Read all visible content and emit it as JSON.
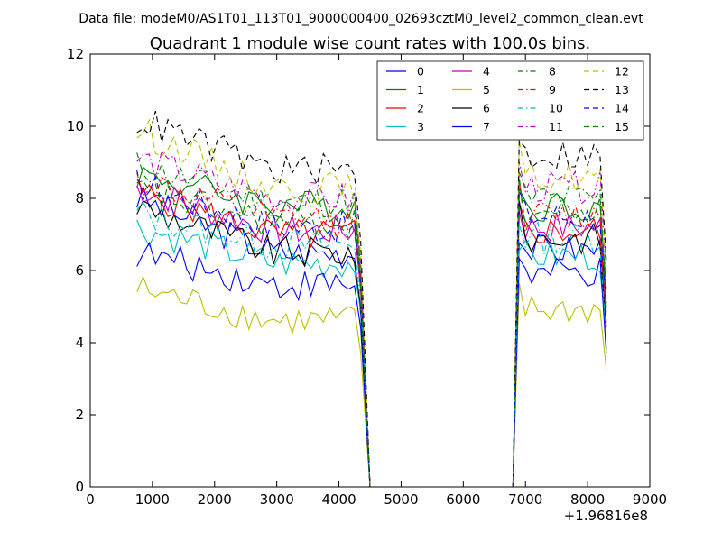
{
  "chart_data": {
    "type": "line",
    "suptitle": "Data file: modeM0/AS1T01_113T01_9000000400_02693cztM0_level2_common_clean.evt",
    "title": "Quadrant 1 module wise count rates with 100.0s bins.",
    "xlabel": "",
    "ylabel": "",
    "x_offset_label": "+1.96816e8",
    "xlim": [
      0,
      9000
    ],
    "ylim": [
      0,
      12
    ],
    "x_ticks": [
      0,
      1000,
      2000,
      3000,
      4000,
      5000,
      6000,
      7000,
      8000,
      9000
    ],
    "y_ticks": [
      0,
      2,
      4,
      6,
      8,
      10,
      12
    ],
    "grid": false,
    "legend_position": "top-right",
    "legend_columns": 4,
    "x": [
      750,
      850,
      950,
      1050,
      1150,
      1250,
      1350,
      1450,
      1550,
      1650,
      1750,
      1850,
      1950,
      2050,
      2150,
      2250,
      2350,
      2450,
      2550,
      2650,
      2750,
      2850,
      2950,
      3050,
      3150,
      3250,
      3350,
      3450,
      3550,
      3650,
      3750,
      3850,
      3950,
      4050,
      4150,
      4250,
      4350,
      4500,
      4600,
      4700,
      4800,
      4900,
      5000,
      5100,
      5200,
      5300,
      5400,
      5500,
      5600,
      5700,
      5800,
      5900,
      6000,
      6100,
      6200,
      6300,
      6400,
      6500,
      6600,
      6700,
      6800,
      6900,
      7000,
      7100,
      7200,
      7300,
      7400,
      7500,
      7600,
      7700,
      7800,
      7900,
      8000,
      8100,
      8200,
      8300
    ],
    "series": [
      {
        "name": "0",
        "color": "#0000ff",
        "dash": "solid",
        "levels": [
          8.0,
          6.5,
          4.8,
          0.0,
          6.6
        ]
      },
      {
        "name": "1",
        "color": "#008000",
        "dash": "solid",
        "levels": [
          8.7,
          7.8,
          5.8,
          0.0,
          7.8
        ]
      },
      {
        "name": "2",
        "color": "#ff0000",
        "dash": "solid",
        "levels": [
          8.2,
          7.0,
          5.4,
          0.0,
          7.1
        ]
      },
      {
        "name": "3",
        "color": "#00bfbf",
        "dash": "solid",
        "levels": [
          7.2,
          6.2,
          4.9,
          0.0,
          6.4
        ]
      },
      {
        "name": "4",
        "color": "#bf00bf",
        "dash": "solid",
        "levels": [
          8.3,
          7.1,
          5.5,
          0.0,
          7.2
        ]
      },
      {
        "name": "5",
        "color": "#bfbf00",
        "dash": "solid",
        "levels": [
          5.5,
          4.6,
          3.7,
          0.0,
          4.9
        ]
      },
      {
        "name": "6",
        "color": "#000000",
        "dash": "solid",
        "levels": [
          7.8,
          6.5,
          5.0,
          0.0,
          6.9
        ]
      },
      {
        "name": "7",
        "color": "#0000ff",
        "dash": "solid",
        "levels": [
          6.5,
          5.6,
          4.4,
          0.0,
          5.9
        ]
      },
      {
        "name": "8",
        "color": "#008000",
        "dash": "dashdot",
        "levels": [
          8.9,
          7.9,
          6.0,
          0.0,
          8.0
        ]
      },
      {
        "name": "9",
        "color": "#ff0000",
        "dash": "dashdot",
        "levels": [
          8.5,
          7.4,
          5.7,
          0.0,
          7.5
        ]
      },
      {
        "name": "10",
        "color": "#00bfbf",
        "dash": "dashdot",
        "levels": [
          7.6,
          6.7,
          5.2,
          0.0,
          6.9
        ]
      },
      {
        "name": "11",
        "color": "#bf00bf",
        "dash": "dashdot",
        "levels": [
          9.1,
          8.0,
          6.2,
          0.0,
          8.3
        ]
      },
      {
        "name": "12",
        "color": "#bfbf00",
        "dash": "dashed",
        "levels": [
          9.9,
          8.3,
          6.5,
          0.0,
          8.6
        ]
      },
      {
        "name": "13",
        "color": "#000000",
        "dash": "dashed",
        "levels": [
          10.2,
          8.8,
          6.8,
          0.0,
          9.2
        ]
      },
      {
        "name": "14",
        "color": "#0000ff",
        "dash": "dashed",
        "levels": [
          8.4,
          7.2,
          5.6,
          0.0,
          7.5
        ]
      },
      {
        "name": "15",
        "color": "#008000",
        "dash": "dashed",
        "levels": [
          8.2,
          7.3,
          5.5,
          0.0,
          7.6
        ]
      }
    ]
  }
}
